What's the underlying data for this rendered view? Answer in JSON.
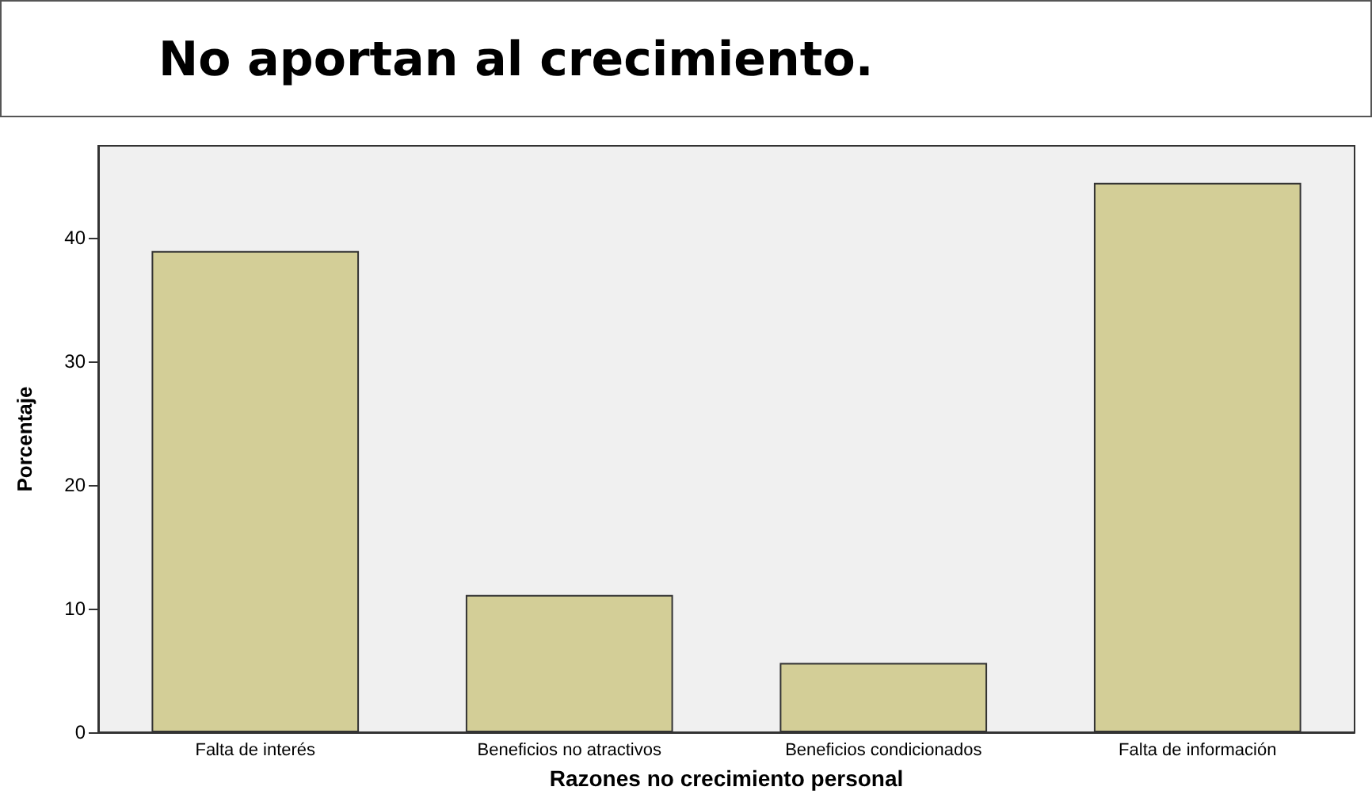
{
  "chart_data": {
    "type": "bar",
    "title": "No aportan al crecimiento.",
    "xlabel": "Razones no crecimiento personal",
    "ylabel": "Porcentaje",
    "categories": [
      "Falta de interés",
      "Beneficios no atractivos",
      "Beneficios condicionados",
      "Falta de información"
    ],
    "values": [
      38.9,
      11.1,
      5.6,
      44.4
    ],
    "color": "#d3ce97",
    "ylim": [
      0,
      47.4
    ],
    "yticks": [
      0,
      10,
      20,
      30,
      40
    ],
    "grid": false
  }
}
